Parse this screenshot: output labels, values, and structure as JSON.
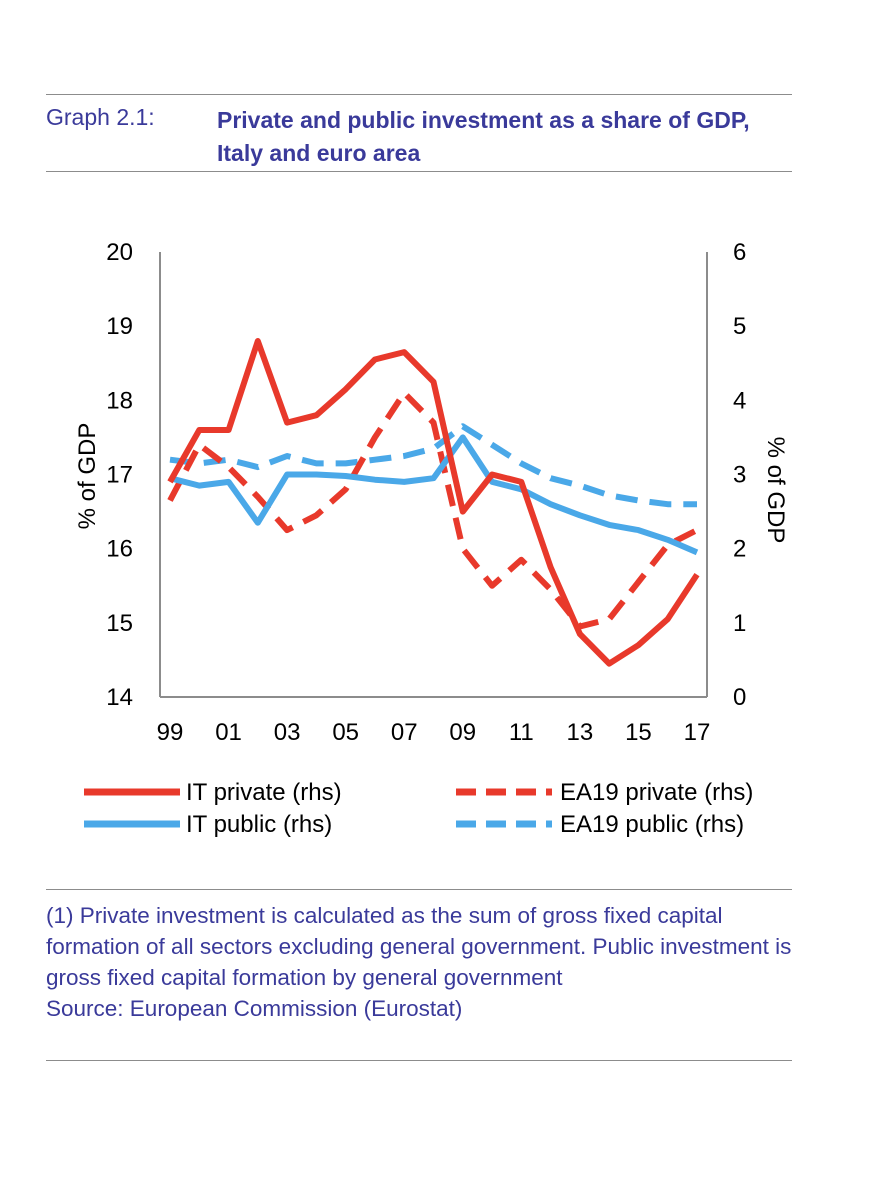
{
  "header": {
    "graph_label": "Graph 2.1:",
    "graph_title": "Private and public investment as a share of GDP, Italy and euro area"
  },
  "colors": {
    "red": "#e8392b",
    "blue": "#4aa8e8",
    "header_text": "#3a3a9a"
  },
  "chart_data": {
    "type": "line",
    "x": [
      "99",
      "00",
      "01",
      "02",
      "03",
      "04",
      "05",
      "06",
      "07",
      "08",
      "09",
      "10",
      "11",
      "12",
      "13",
      "14",
      "15",
      "16",
      "17"
    ],
    "x_tick_labels": [
      "99",
      "01",
      "03",
      "05",
      "07",
      "09",
      "11",
      "13",
      "15",
      "17"
    ],
    "left_axis": {
      "label": "% of GDP",
      "ylim": [
        14,
        20
      ],
      "ticks": [
        "20",
        "19",
        "18",
        "17",
        "16",
        "15",
        "14"
      ]
    },
    "right_axis": {
      "label": "% of GDP",
      "ylim": [
        0,
        6
      ],
      "ticks": [
        "6",
        "5",
        "4",
        "3",
        "2",
        "1",
        "0"
      ]
    },
    "grid": false,
    "legend_position": "bottom",
    "series": [
      {
        "name": "IT private (rhs)",
        "axis": "left",
        "style": "solid",
        "color": "#e8392b",
        "values": [
          16.9,
          17.6,
          17.6,
          18.8,
          17.7,
          17.8,
          18.15,
          18.55,
          18.65,
          18.25,
          16.5,
          17.0,
          16.9,
          15.75,
          14.85,
          14.45,
          14.7,
          15.05,
          15.65
        ]
      },
      {
        "name": "EA19 private (rhs)",
        "axis": "left",
        "style": "dashed",
        "color": "#e8392b",
        "values": [
          16.65,
          17.4,
          17.1,
          16.7,
          16.25,
          16.45,
          16.8,
          17.5,
          18.1,
          17.7,
          16.0,
          15.5,
          15.85,
          15.45,
          14.95,
          15.05,
          15.55,
          16.05,
          16.25
        ]
      },
      {
        "name": "IT public (rhs)",
        "axis": "right",
        "style": "solid",
        "color": "#4aa8e8",
        "values": [
          2.95,
          2.85,
          2.9,
          2.35,
          3.0,
          3.0,
          2.98,
          2.93,
          2.9,
          2.95,
          3.5,
          2.9,
          2.8,
          2.6,
          2.45,
          2.32,
          2.25,
          2.12,
          1.95
        ]
      },
      {
        "name": "EA19 public (rhs)",
        "axis": "right",
        "style": "dashed",
        "color": "#4aa8e8",
        "values": [
          3.2,
          3.15,
          3.2,
          3.1,
          3.25,
          3.15,
          3.15,
          3.2,
          3.25,
          3.35,
          3.65,
          3.4,
          3.15,
          2.95,
          2.85,
          2.72,
          2.65,
          2.6,
          2.6
        ]
      }
    ]
  },
  "notes": {
    "footnote": "(1) Private investment is calculated as the sum of gross fixed capital formation of all sectors excluding general government. Public investment is gross fixed capital formation by general government",
    "source": "Source: European Commission (Eurostat)"
  }
}
